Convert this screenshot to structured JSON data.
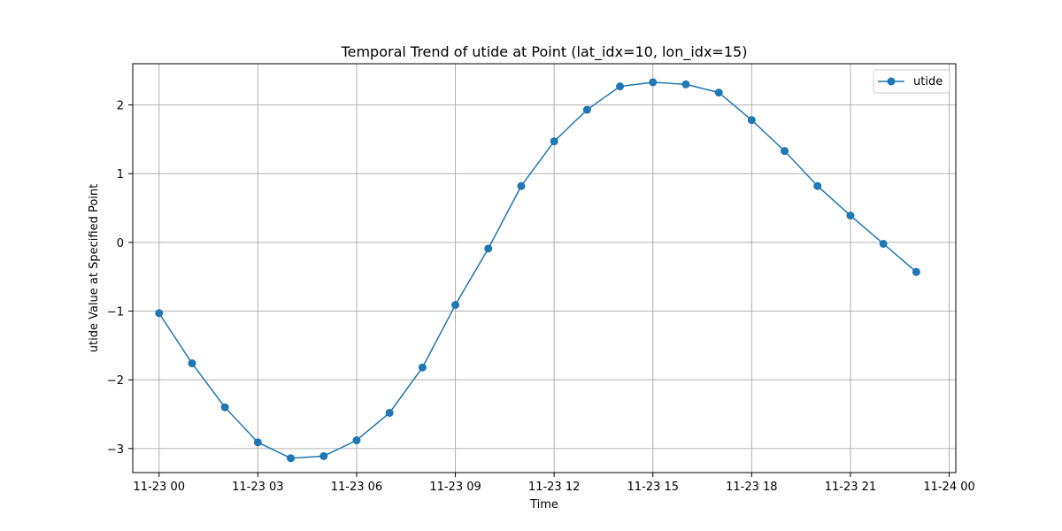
{
  "chart_data": {
    "type": "line",
    "title": "Temporal Trend of utide at Point (lat_idx=10, lon_idx=15)",
    "xlabel": "Time",
    "ylabel": "utide Value at Specified Point",
    "x_ticks": [
      "11-23 00",
      "11-23 03",
      "11-23 06",
      "11-23 09",
      "11-23 12",
      "11-23 15",
      "11-23 18",
      "11-23 21",
      "11-24 00"
    ],
    "x": [
      "11-23 00:00",
      "11-23 01:00",
      "11-23 02:00",
      "11-23 03:00",
      "11-23 04:00",
      "11-23 05:00",
      "11-23 06:00",
      "11-23 07:00",
      "11-23 08:00",
      "11-23 09:00",
      "11-23 10:00",
      "11-23 11:00",
      "11-23 12:00",
      "11-23 13:00",
      "11-23 14:00",
      "11-23 15:00",
      "11-23 16:00",
      "11-23 17:00",
      "11-23 18:00",
      "11-23 19:00",
      "11-23 20:00",
      "11-23 21:00",
      "11-23 22:00",
      "11-23 23:00"
    ],
    "y_ticks": [
      2,
      1,
      0,
      -1,
      -2,
      -3
    ],
    "y_tick_labels": [
      "2",
      "1",
      "0",
      "−1",
      "−2",
      "−3"
    ],
    "ylim": [
      -3.35,
      2.6
    ],
    "grid": true,
    "legend_location": "upper right",
    "series": [
      {
        "name": "utide",
        "color": "#1f77b4",
        "marker": "circle",
        "values": [
          -1.03,
          -1.76,
          -2.4,
          -2.91,
          -3.14,
          -3.11,
          -2.88,
          -2.48,
          -1.82,
          -0.91,
          -0.09,
          0.82,
          1.47,
          1.93,
          2.27,
          2.33,
          2.3,
          2.18,
          1.78,
          1.33,
          0.82,
          0.39,
          -0.02,
          -0.43
        ]
      }
    ]
  }
}
